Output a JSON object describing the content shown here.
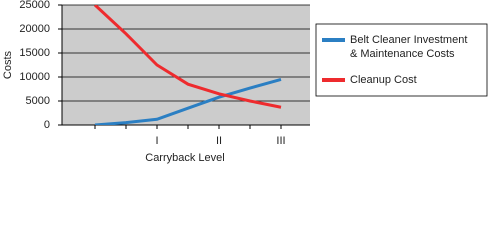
{
  "chart_data": {
    "type": "line",
    "x_label": "Carryback Level",
    "y_label": "Costs",
    "categories": [
      null,
      null,
      "I",
      null,
      "II",
      null,
      "III"
    ],
    "series": [
      {
        "name": "Belt Cleaner Investment\n& Maintenance Costs",
        "color": "#2b7fc3",
        "values": [
          0,
          500,
          1200,
          3500,
          5800,
          7700,
          9500
        ]
      },
      {
        "name": "Cleanup Cost",
        "color": "#ee2b2e",
        "values": [
          25000,
          19000,
          12500,
          8500,
          6500,
          5000,
          3700
        ]
      }
    ],
    "ylim": [
      0,
      25000
    ],
    "yticks": [
      0,
      5000,
      10000,
      15000,
      20000,
      25000
    ],
    "grid": true,
    "plot_color": "#cccccc",
    "legend": "right"
  }
}
